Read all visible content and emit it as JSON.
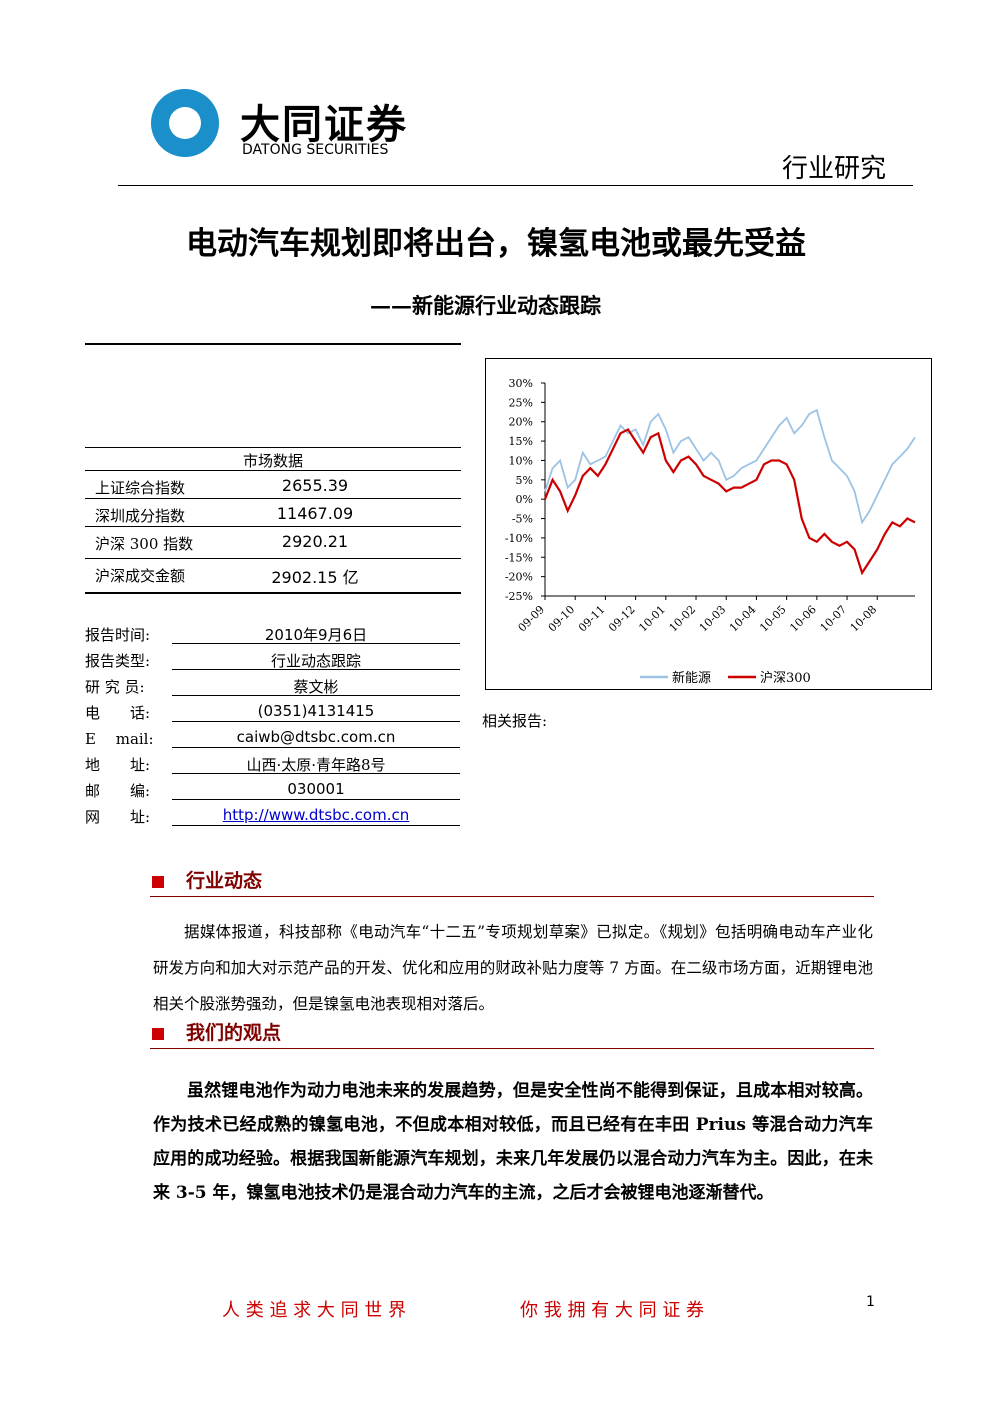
{
  "header": {
    "logo_cn": "大同证券",
    "logo_en": "DATONG SECURITIES",
    "category": "行业研究"
  },
  "title": "电动汽车规划即将出台，镍氢电池或最先受益",
  "subtitle": "——新能源行业动态跟踪",
  "market": {
    "title": "市场数据",
    "rows": [
      [
        "上证综合指数",
        "2655.39"
      ],
      [
        "深圳成分指数",
        "11467.09"
      ],
      [
        "沪深 300 指数",
        "2920.21"
      ],
      [
        "沪深成交金额",
        "2902.15 亿"
      ]
    ]
  },
  "info": {
    "rows": [
      [
        "报告时间:",
        "2010年9月6日"
      ],
      [
        "报告类型:",
        "行业动态跟踪"
      ],
      [
        "研 究 员:",
        "蔡文彬"
      ],
      [
        "电　　话:",
        "(0351)4131415"
      ],
      [
        "E　 mail:",
        "caiwb@dtsbc.com.cn"
      ],
      [
        "地　　址:",
        "山西·太原·青年路8号"
      ],
      [
        "邮　　编:",
        "030001"
      ],
      [
        "网　　址:",
        "http://www.dtsbc.com.cn"
      ]
    ]
  },
  "related": "相关报告:",
  "sections": [
    {
      "heading": "行业动态",
      "paragraphs": [
        "据媒体报道，科技部称《电动汽车“十二五”专项规划草案》已拟定。《规划》包括明确电动车产业化研发方向和加大对示范产品的开发、优化和应用的财政补贴力度等 7 方面。在二级市场方面，近期锂电池相关个股涨势强劲，但是镍氢电池表现相对落后。"
      ]
    },
    {
      "heading": "我们的观点",
      "paragraphs": [
        "虽然锂电池作为动力电池未来的发展趋势，但是安全性尚不能得到保证，且成本相对较高。作为技术已经成熟的镍氢电池，不但成本相对较低，而且已经有在丰田 Prius 等混合动力汽车应用的成功经验。根据我国新能源汽车规划，未来几年发展仍以混合动力汽车为主。因此，在未来 3-5 年，镍氢电池技术仍是混合动力汽车的主流，之后才会被锂电池逐渐替代。"
      ]
    }
  ],
  "footer": {
    "slogan_left": "人 类 追 求 大 同 世 界",
    "slogan_right": "你 我 拥 有 大 同 证 券",
    "page": "1"
  },
  "chart_data": {
    "type": "line",
    "categories": [
      "09-09",
      null,
      null,
      null,
      "09-10",
      null,
      null,
      null,
      "09-11",
      null,
      null,
      null,
      "09-12",
      null,
      null,
      null,
      "10-01",
      null,
      null,
      null,
      "10-02",
      null,
      null,
      null,
      "10-03",
      null,
      null,
      null,
      "10-04",
      null,
      null,
      null,
      "10-05",
      null,
      null,
      null,
      "10-06",
      null,
      null,
      null,
      "10-07",
      null,
      null,
      null,
      "10-08",
      null,
      null,
      null,
      null,
      null
    ],
    "series": [
      {
        "name": "新能源",
        "color": "#9cc3e5",
        "values": [
          2,
          8,
          10,
          3,
          5,
          12,
          9,
          10,
          11,
          15,
          19,
          17,
          18,
          14,
          20,
          22,
          18,
          12,
          15,
          16,
          13,
          10,
          12,
          10,
          5,
          6,
          8,
          9,
          10,
          13,
          16,
          19,
          21,
          17,
          19,
          22,
          23,
          16,
          10,
          8,
          6,
          2,
          -6,
          -3,
          1,
          5,
          9,
          11,
          13,
          16
        ]
      },
      {
        "name": "沪深300",
        "color": "#cc0000",
        "values": [
          0,
          5,
          2,
          -3,
          1,
          6,
          8,
          6,
          9,
          13,
          17,
          18,
          15,
          12,
          16,
          17,
          10,
          7,
          10,
          11,
          9,
          6,
          5,
          4,
          2,
          3,
          3,
          4,
          5,
          9,
          10,
          10,
          9,
          5,
          -5,
          -10,
          -11,
          -9,
          -11,
          -12,
          -11,
          -13,
          -19,
          -16,
          -13,
          -9,
          -6,
          -7,
          -5,
          -6
        ]
      }
    ],
    "ylim": [
      -25,
      30
    ],
    "yticks": [
      {
        "value": 30,
        "label": "30%"
      },
      {
        "value": 25,
        "label": "25%"
      },
      {
        "value": 20,
        "label": "20%"
      },
      {
        "value": 15,
        "label": "15%"
      },
      {
        "value": 10,
        "label": "10%"
      },
      {
        "value": 5,
        "label": "5%"
      },
      {
        "value": 0,
        "label": "0%"
      },
      {
        "value": -5,
        "label": "-5%"
      },
      {
        "value": -10,
        "label": "-10%"
      },
      {
        "value": -15,
        "label": "-15%"
      },
      {
        "value": -20,
        "label": "-20%"
      },
      {
        "value": -25,
        "label": "-25%"
      }
    ],
    "legend": "bottom"
  }
}
